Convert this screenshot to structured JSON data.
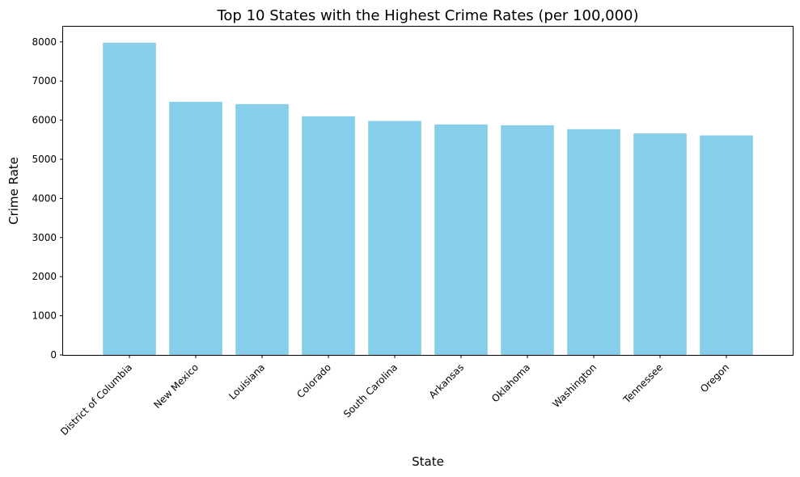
{
  "chart_data": {
    "type": "bar",
    "title": "Top 10 States with the Highest Crime Rates (per 100,000)",
    "xlabel": "State",
    "ylabel": "Crime Rate",
    "categories": [
      "District of Columbia",
      "New Mexico",
      "Louisiana",
      "Colorado",
      "South Carolina",
      "Arkansas",
      "Oklahoma",
      "Washington",
      "Tennessee",
      "Oregon"
    ],
    "values": [
      7980,
      6470,
      6410,
      6100,
      5980,
      5890,
      5870,
      5770,
      5660,
      5610
    ],
    "ylim": [
      0,
      8389
    ],
    "yticks": [
      0,
      1000,
      2000,
      3000,
      4000,
      5000,
      6000,
      7000,
      8000
    ],
    "bar_color": "#87ceeb",
    "grid": false,
    "legend": "none"
  }
}
